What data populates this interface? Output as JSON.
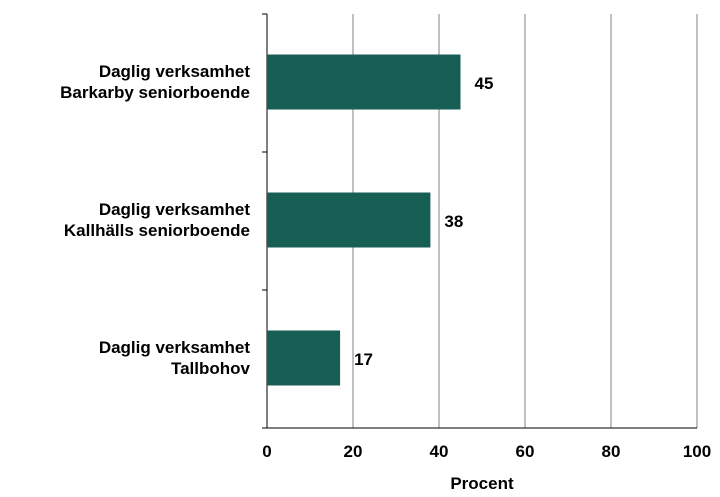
{
  "chart_data": {
    "type": "bar",
    "orientation": "horizontal",
    "categories": [
      "Daglig verksamhet\nBarkarby seniorboende",
      "Daglig verksamhet\nKallhälls seniorboende",
      "Daglig verksamhet\nTallbohov"
    ],
    "values": [
      45,
      38,
      17
    ],
    "color": "#175e54",
    "xlabel": "Procent",
    "xlim": [
      0,
      100
    ],
    "xticks": [
      0,
      20,
      40,
      60,
      80,
      100
    ],
    "grid": true
  }
}
